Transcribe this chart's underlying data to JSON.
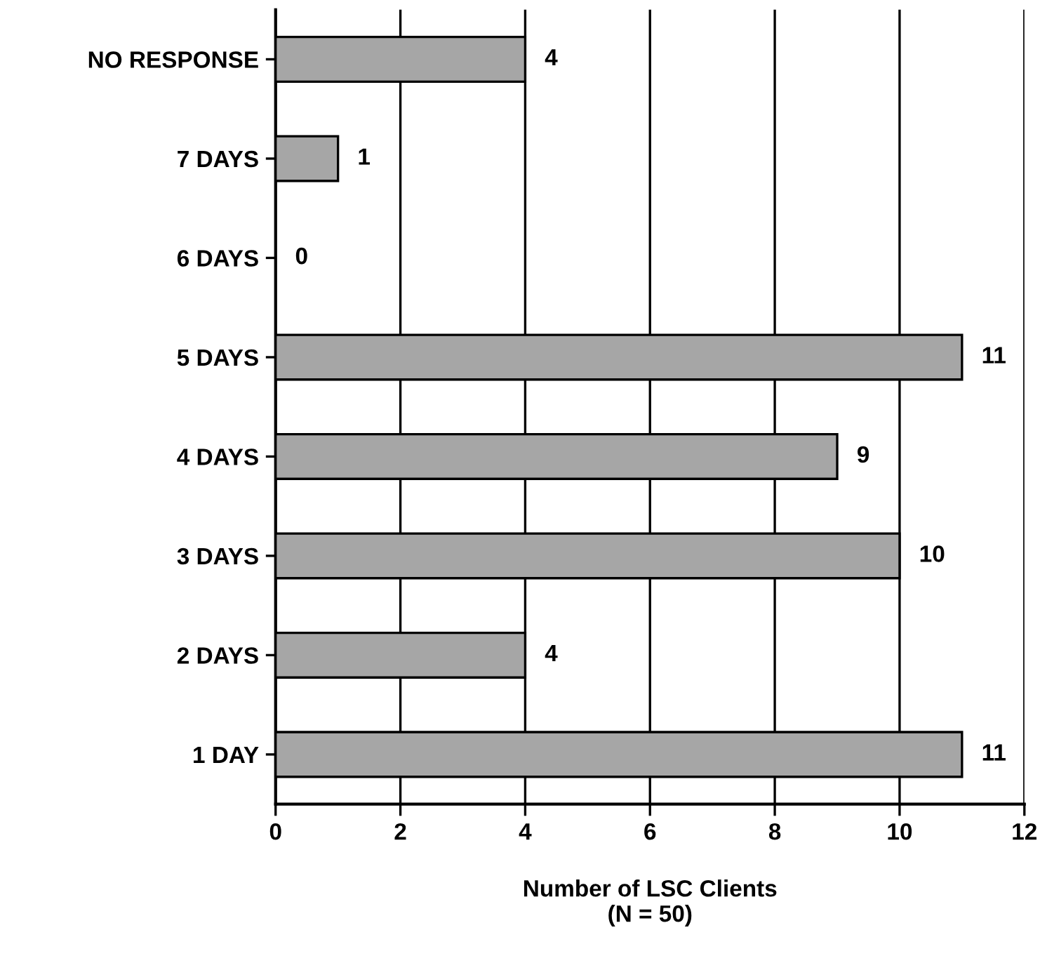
{
  "chart_data": {
    "type": "bar",
    "orientation": "horizontal",
    "categories": [
      "NO RESPONSE",
      "7 DAYS",
      "6 DAYS",
      "5 DAYS",
      "4 DAYS",
      "3 DAYS",
      "2 DAYS",
      "1 DAY"
    ],
    "values": [
      4,
      1,
      0,
      11,
      9,
      10,
      4,
      11
    ],
    "color": "#a6a6a6",
    "xlabel": "Number of LSC Clients\n(N = 50)",
    "xlim": [
      0,
      12
    ],
    "xticks": [
      0,
      2,
      4,
      6,
      8,
      10,
      12
    ],
    "grid": "x",
    "data_labels": true
  }
}
